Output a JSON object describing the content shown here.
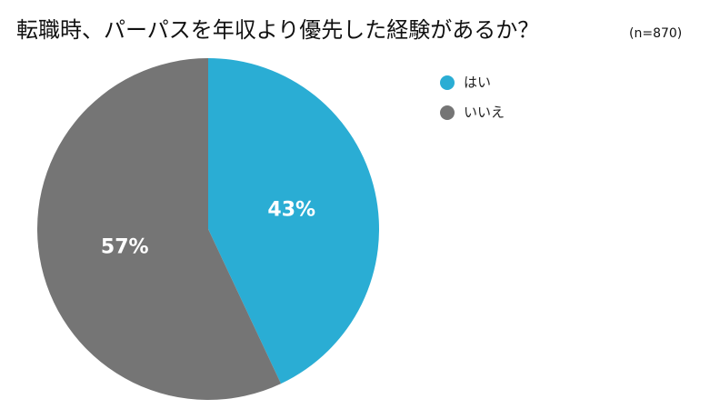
{
  "chart_data": {
    "type": "pie",
    "title": "転職時、パーパスを年収より優先した経験があるか？",
    "subtitle": "(n=870)",
    "categories": [
      "はい",
      "いいえ"
    ],
    "values": [
      43,
      57
    ],
    "value_labels": [
      "43%",
      "57%"
    ],
    "colors": [
      "#2aadd4",
      "#757575"
    ],
    "legend": "right"
  }
}
